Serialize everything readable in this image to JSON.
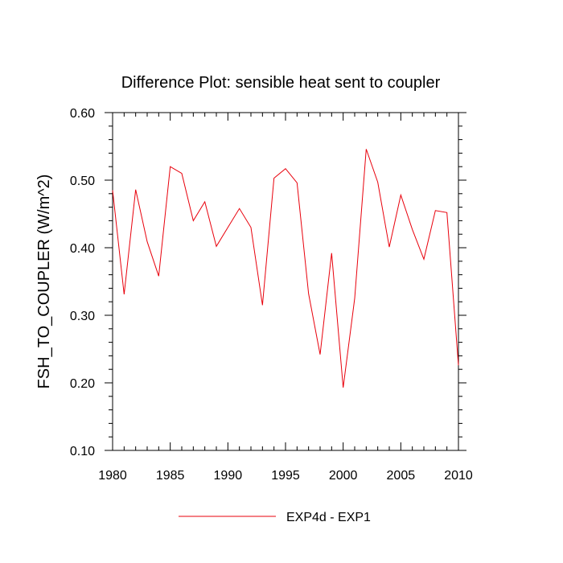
{
  "chart_data": {
    "type": "line",
    "title": "Difference Plot: sensible heat sent to coupler",
    "xlabel": "",
    "ylabel": "FSH_TO_COUPLER  (W/m^2)",
    "xlim": [
      1980,
      2010
    ],
    "ylim": [
      0.1,
      0.6
    ],
    "x_ticks": [
      1980,
      1985,
      1990,
      1995,
      2000,
      2005,
      2010
    ],
    "x_tick_labels": [
      "1980",
      "1985",
      "1990",
      "1995",
      "2000",
      "2005",
      "2010"
    ],
    "y_ticks": [
      0.1,
      0.2,
      0.3,
      0.4,
      0.5,
      0.6
    ],
    "y_tick_labels": [
      "0.10",
      "0.20",
      "0.30",
      "0.40",
      "0.50",
      "0.60"
    ],
    "grid": false,
    "legend_position": "bottom-center",
    "series": [
      {
        "name": "EXP4d - EXP1",
        "color": "#e8000b",
        "x": [
          1980,
          1981,
          1982,
          1983,
          1984,
          1985,
          1986,
          1987,
          1988,
          1989,
          1990,
          1991,
          1992,
          1993,
          1994,
          1995,
          1996,
          1997,
          1998,
          1999,
          2000,
          2001,
          2002,
          2003,
          2004,
          2005,
          2006,
          2007,
          2008,
          2009,
          2010
        ],
        "values": [
          0.485,
          0.331,
          0.486,
          0.409,
          0.358,
          0.52,
          0.51,
          0.44,
          0.468,
          0.402,
          0.43,
          0.458,
          0.43,
          0.315,
          0.503,
          0.517,
          0.496,
          0.332,
          0.242,
          0.392,
          0.193,
          0.325,
          0.546,
          0.497,
          0.401,
          0.478,
          0.427,
          0.383,
          0.455,
          0.452,
          0.226
        ]
      }
    ]
  }
}
